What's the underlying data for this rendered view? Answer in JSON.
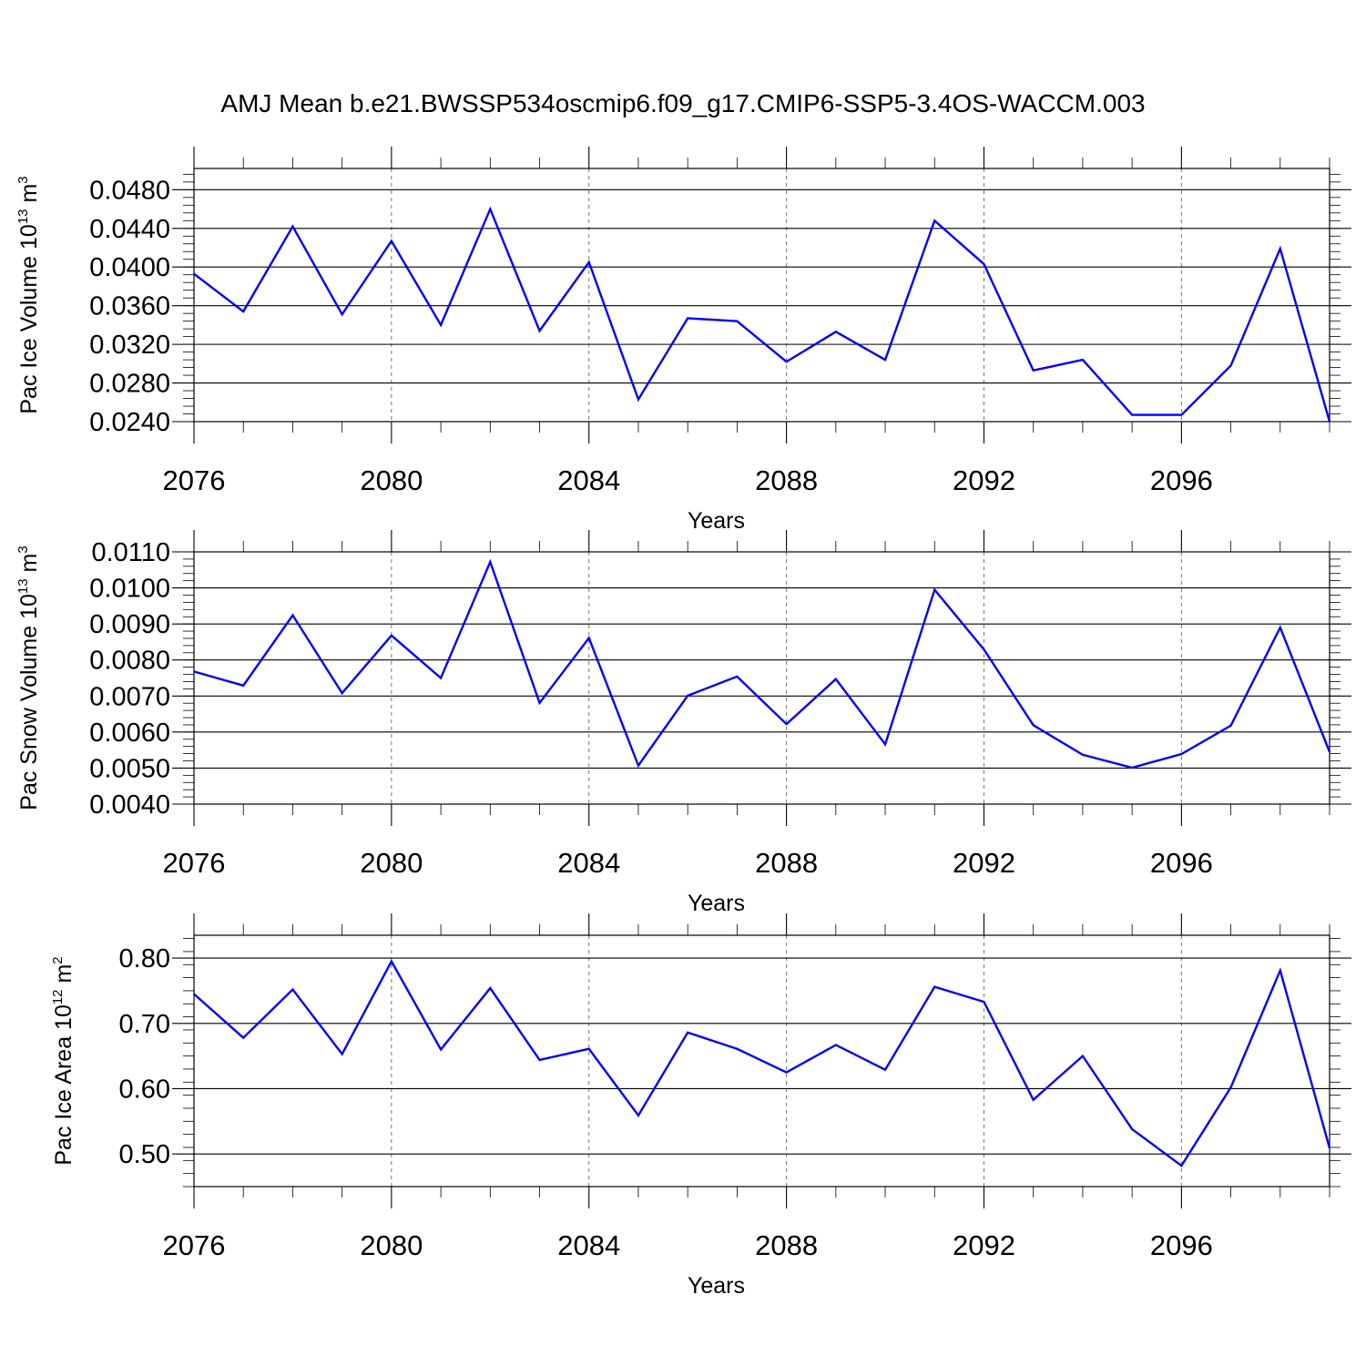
{
  "title": "AMJ Mean b.e21.BWSSP534oscmip6.f09_g17.CMIP6-SSP5-3.4OS-WACCM.003",
  "chart_data": [
    {
      "type": "line",
      "xlabel": "Years",
      "ylabel_parts": [
        "Pac Ice Volume 10",
        "13",
        " m",
        "3"
      ],
      "xlim": [
        2076,
        2099
      ],
      "ylim": [
        0.024,
        0.0502
      ],
      "x_ticks": [
        2076,
        2080,
        2084,
        2088,
        2092,
        2096
      ],
      "y_ticks": [
        0.024,
        0.028,
        0.032,
        0.036,
        0.04,
        0.044,
        0.048
      ],
      "y_tick_labels": [
        "0.0240",
        "0.0280",
        "0.0320",
        "0.0360",
        "0.0400",
        "0.0440",
        "0.0480"
      ],
      "y_minor_step": 0.0008,
      "x_minor_step": 1,
      "color": "#0000ff",
      "x": [
        2076,
        2077,
        2078,
        2079,
        2080,
        2081,
        2082,
        2083,
        2084,
        2085,
        2086,
        2087,
        2088,
        2089,
        2090,
        2091,
        2092,
        2093,
        2094,
        2095,
        2096,
        2097,
        2098,
        2099
      ],
      "y": [
        0.0393,
        0.0354,
        0.0442,
        0.0351,
        0.0427,
        0.034,
        0.046,
        0.0334,
        0.0405,
        0.0263,
        0.0347,
        0.0344,
        0.0302,
        0.0333,
        0.0304,
        0.0448,
        0.0403,
        0.0293,
        0.0304,
        0.0247,
        0.0247,
        0.0298,
        0.0419,
        0.024
      ]
    },
    {
      "type": "line",
      "xlabel": "Years",
      "ylabel_parts": [
        "Pac Snow Volume 10",
        "13",
        " m",
        "3"
      ],
      "xlim": [
        2076,
        2099
      ],
      "ylim": [
        0.004,
        0.011
      ],
      "x_ticks": [
        2076,
        2080,
        2084,
        2088,
        2092,
        2096
      ],
      "y_ticks": [
        0.004,
        0.005,
        0.006,
        0.007,
        0.008,
        0.009,
        0.01,
        0.011
      ],
      "y_tick_labels": [
        "0.0040",
        "0.0050",
        "0.0060",
        "0.0070",
        "0.0080",
        "0.0090",
        "0.0100",
        "0.0110"
      ],
      "y_minor_step": 0.0002,
      "x_minor_step": 1,
      "color": "#0000ff",
      "x": [
        2076,
        2077,
        2078,
        2079,
        2080,
        2081,
        2082,
        2083,
        2084,
        2085,
        2086,
        2087,
        2088,
        2089,
        2090,
        2091,
        2092,
        2093,
        2094,
        2095,
        2096,
        2097,
        2098,
        2099
      ],
      "y": [
        0.00768,
        0.00729,
        0.00924,
        0.00708,
        0.00868,
        0.0075,
        0.01072,
        0.00681,
        0.00861,
        0.00507,
        0.00701,
        0.00754,
        0.00622,
        0.00747,
        0.00566,
        0.00995,
        0.00829,
        0.00619,
        0.00537,
        0.00501,
        0.00539,
        0.00618,
        0.0089,
        0.00545
      ]
    },
    {
      "type": "line",
      "xlabel": "Years",
      "ylabel_parts": [
        "Pac Ice Area 10",
        "12",
        " m",
        "2"
      ],
      "xlim": [
        2076,
        2099
      ],
      "ylim": [
        0.45,
        0.835
      ],
      "x_ticks": [
        2076,
        2080,
        2084,
        2088,
        2092,
        2096
      ],
      "y_ticks": [
        0.5,
        0.6,
        0.7,
        0.8
      ],
      "y_tick_labels": [
        "0.50",
        "0.60",
        "0.70",
        "0.80"
      ],
      "y_minor_step": 0.02,
      "x_minor_step": 1,
      "color": "#0000ff",
      "x": [
        2076,
        2077,
        2078,
        2079,
        2080,
        2081,
        2082,
        2083,
        2084,
        2085,
        2086,
        2087,
        2088,
        2089,
        2090,
        2091,
        2092,
        2093,
        2094,
        2095,
        2096,
        2097,
        2098,
        2099
      ],
      "y": [
        0.745,
        0.678,
        0.752,
        0.653,
        0.795,
        0.66,
        0.754,
        0.644,
        0.661,
        0.559,
        0.686,
        0.661,
        0.625,
        0.667,
        0.629,
        0.756,
        0.733,
        0.583,
        0.65,
        0.538,
        0.482,
        0.602,
        0.781,
        0.509
      ]
    }
  ]
}
